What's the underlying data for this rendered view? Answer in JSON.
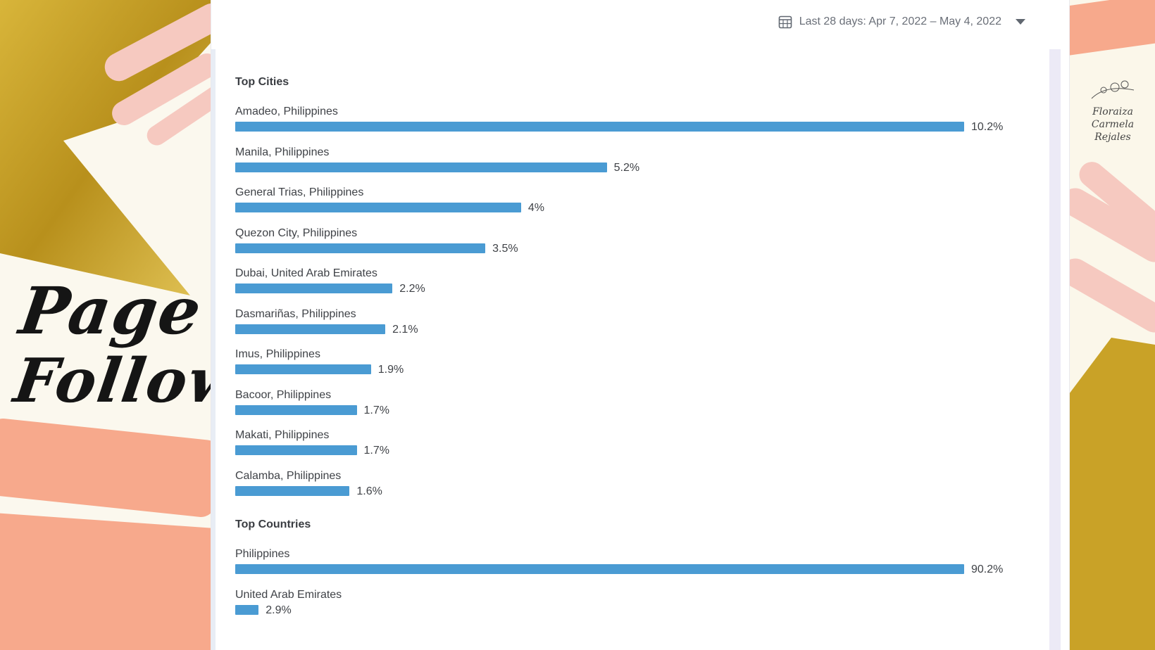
{
  "colors": {
    "bar": "#4a9bd3",
    "gold": "#c9a227",
    "pink": "#f6c9c0",
    "peach": "#f7a98c"
  },
  "slide_title": {
    "line1": "Page",
    "line2": "Followers"
  },
  "watermark": {
    "line1": "Floraiza",
    "line2": "Carmela",
    "line3": "Rejales",
    "icon": "flower-icon"
  },
  "date_range": {
    "label": "Last 28 days: Apr 7, 2022 – May 4, 2022",
    "icon": "calendar-icon"
  },
  "chart_data": [
    {
      "type": "bar",
      "title": "Top Cities",
      "categories": [
        "Amadeo, Philippines",
        "Manila, Philippines",
        "General Trias, Philippines",
        "Quezon City, Philippines",
        "Dubai, United Arab Emirates",
        "Dasmariñas, Philippines",
        "Imus, Philippines",
        "Bacoor, Philippines",
        "Makati, Philippines",
        "Calamba, Philippines"
      ],
      "values": [
        10.2,
        5.2,
        4,
        3.5,
        2.2,
        2.1,
        1.9,
        1.7,
        1.7,
        1.6
      ],
      "labels": [
        "10.2%",
        "5.2%",
        "4%",
        "3.5%",
        "2.2%",
        "2.1%",
        "1.9%",
        "1.7%",
        "1.7%",
        "1.6%"
      ]
    },
    {
      "type": "bar",
      "title": "Top Countries",
      "categories": [
        "Philippines",
        "United Arab Emirates"
      ],
      "values": [
        90.2,
        2.9
      ],
      "labels": [
        "90.2%",
        "2.9%"
      ]
    }
  ]
}
